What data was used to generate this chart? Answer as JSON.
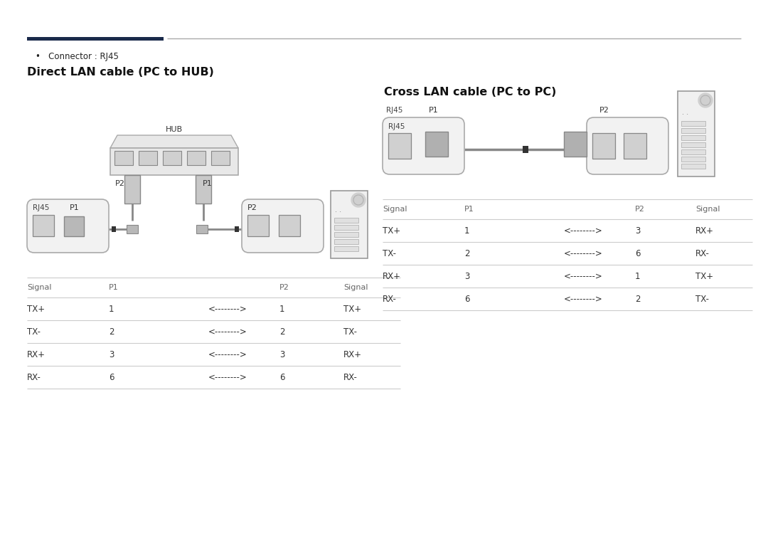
{
  "bg_color": "#ffffff",
  "header_bar_dark": "#1a2a4a",
  "text_color": "#222222",
  "light_text": "#666666",
  "line_color": "#cccccc",
  "connector_label": "Connector : RJ45",
  "left_title": "Direct LAN cable (PC to HUB)",
  "right_title": "Cross LAN cable (PC to PC)",
  "left_table_rows": [
    [
      "TX+",
      "1",
      "<-------->",
      "1",
      "TX+"
    ],
    [
      "TX-",
      "2",
      "<-------->",
      "2",
      "TX-"
    ],
    [
      "RX+",
      "3",
      "<-------->",
      "3",
      "RX+"
    ],
    [
      "RX-",
      "6",
      "<-------->",
      "6",
      "RX-"
    ]
  ],
  "right_table_rows": [
    [
      "TX+",
      "1",
      "<-------->",
      "3",
      "RX+"
    ],
    [
      "TX-",
      "2",
      "<-------->",
      "6",
      "RX-"
    ],
    [
      "RX+",
      "3",
      "<-------->",
      "1",
      "TX+"
    ],
    [
      "RX-",
      "6",
      "<-------->",
      "2",
      "TX-"
    ]
  ]
}
